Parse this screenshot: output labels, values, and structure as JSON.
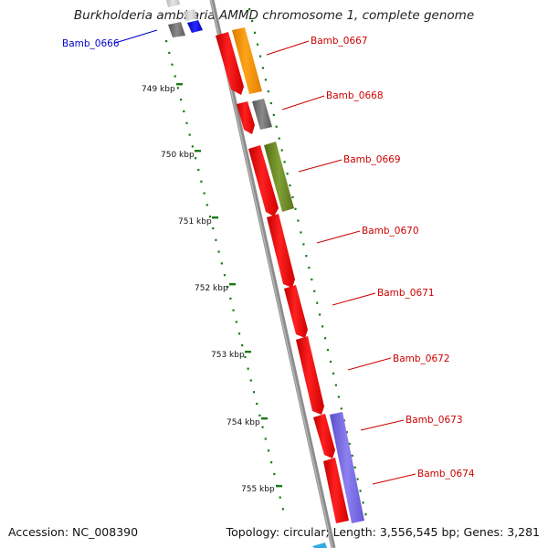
{
  "title": "Burkholderia ambifaria AMMD chromosome 1, complete genome",
  "accession": "Accession: NC_008390",
  "topology": "Topology: circular; Length: 3,556,545 bp; Genes: 3,281",
  "kbp_ticks": [
    "749 kbp",
    "750 kbp",
    "751 kbp",
    "752 kbp",
    "753 kbp",
    "754 kbp",
    "755 kbp"
  ],
  "genes": [
    {
      "label": "Bamb_0666",
      "color": "#0000cc"
    },
    {
      "label": "Bamb_0667",
      "color": "#cc0000"
    },
    {
      "label": "Bamb_0668",
      "color": "#cc0000"
    },
    {
      "label": "Bamb_0669",
      "color": "#cc0000"
    },
    {
      "label": "Bamb_0670",
      "color": "#cc0000"
    },
    {
      "label": "Bamb_0671",
      "color": "#cc0000"
    },
    {
      "label": "Bamb_0672",
      "color": "#cc0000"
    },
    {
      "label": "Bamb_0673",
      "color": "#cc0000"
    },
    {
      "label": "Bamb_0674",
      "color": "#cc0000"
    }
  ],
  "colors": {
    "cds": "#ff0000",
    "backbone": "#8c8c8c",
    "tick": "#1a7a1a",
    "orange": "#ff9900",
    "gray_feature": "#707070",
    "olive": "#6b8e23",
    "purple": "#7b68ee",
    "blue": "#0000ee"
  }
}
